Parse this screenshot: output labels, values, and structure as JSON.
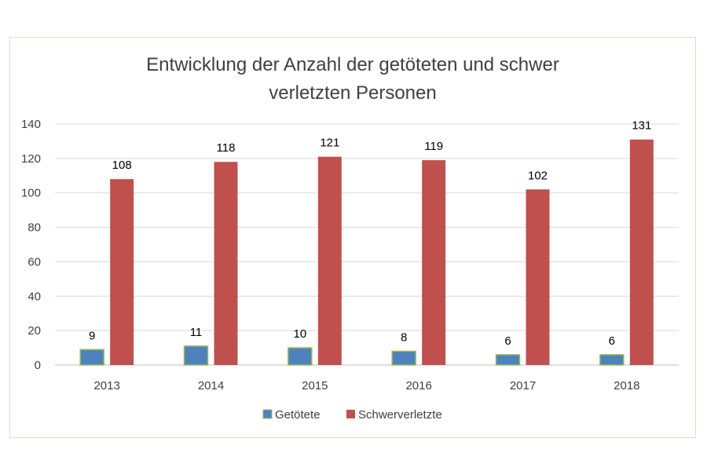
{
  "chart_data": {
    "type": "bar",
    "title_lines": [
      "Entwicklung der Anzahl der getöteten und schwer",
      "verletzten Personen"
    ],
    "categories": [
      "2013",
      "2014",
      "2015",
      "2016",
      "2017",
      "2018"
    ],
    "series": [
      {
        "name": "Getötete",
        "values": [
          9,
          11,
          10,
          8,
          6,
          6
        ],
        "color": "#4f81bd",
        "outline": "#9bbb59"
      },
      {
        "name": "Schwerverletzte",
        "values": [
          108,
          118,
          121,
          119,
          102,
          131
        ],
        "color": "#c0504d"
      }
    ],
    "y_ticks": [
      "0",
      "20",
      "40",
      "60",
      "80",
      "100",
      "120",
      "140"
    ],
    "ylim": [
      0,
      140
    ],
    "grid": true,
    "legend_position": "bottom",
    "xlabel": "",
    "ylabel": ""
  }
}
